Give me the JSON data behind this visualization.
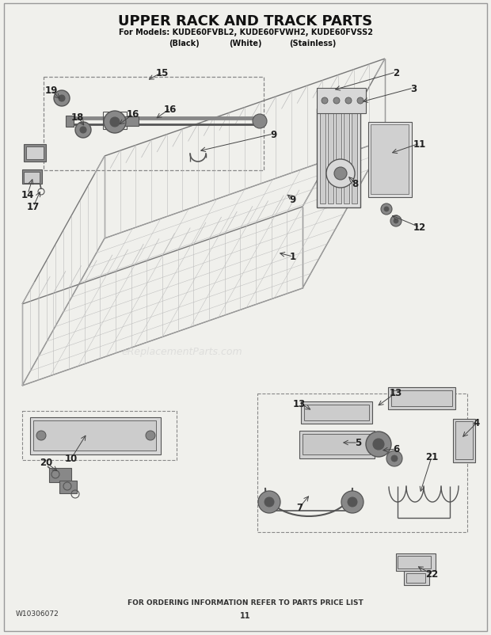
{
  "title": "UPPER RACK AND TRACK PARTS",
  "subtitle1": "For Models: KUDE60FVBL2, KUDE60FVWH2, KUDE60FVSS2",
  "subtitle2_black": "(Black)",
  "subtitle2_white": "(White)",
  "subtitle2_stainless": "(Stainless)",
  "footer_left": "W10306072",
  "footer_center": "FOR ORDERING INFORMATION REFER TO PARTS PRICE LIST",
  "footer_page": "11",
  "bg_color": "#f0f0ec",
  "line_color": "#444444",
  "light_gray": "#bbbbbb",
  "mid_gray": "#888888",
  "dark_gray": "#555555",
  "figsize": [
    6.2,
    8.03
  ],
  "dpi": 100
}
